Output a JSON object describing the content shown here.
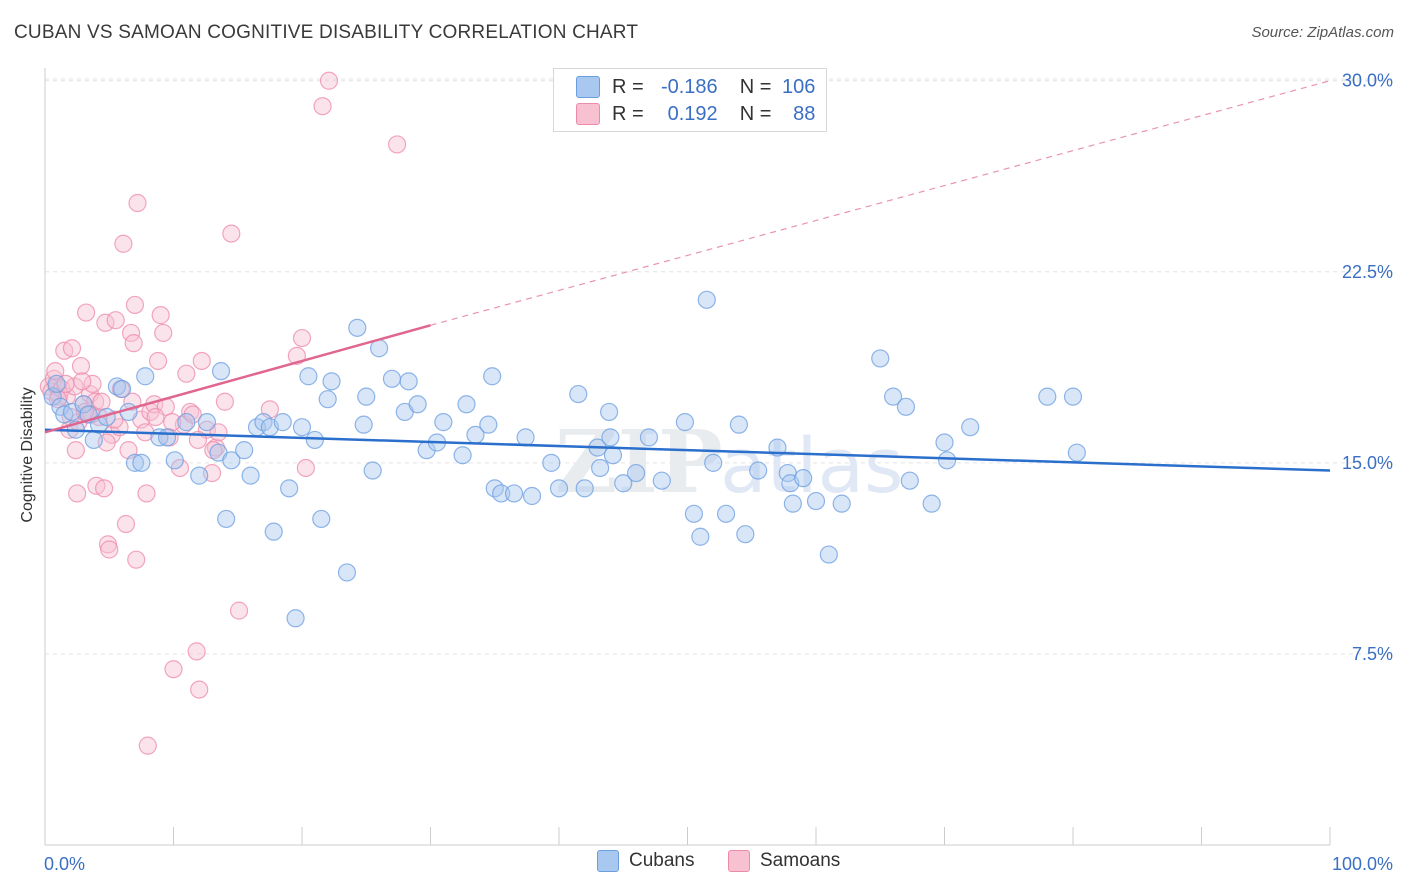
{
  "title": "CUBAN VS SAMOAN COGNITIVE DISABILITY CORRELATION CHART",
  "source": "Source: ZipAtlas.com",
  "legend": {
    "rows": [
      {
        "r_label": "R =",
        "r_value": "-0.186",
        "n_label": "N =",
        "n_value": "106"
      },
      {
        "r_label": "R =",
        "r_value": "0.192",
        "n_label": "N =",
        "n_value": "88"
      }
    ]
  },
  "colors": {
    "cubans": "#6b9ee0",
    "cubans_fill": "#a9c8ef",
    "cubans_line": "#2b6fcc",
    "samoans": "#ee8aaa",
    "samoans_fill": "#f7c1d2",
    "samoans_line": "#e0668f",
    "axis_text": "#3a6fc4"
  },
  "watermark": {
    "zip": "ZIP",
    "atlas": "atlas"
  },
  "chart_data": {
    "type": "scatter",
    "title": "CUBAN VS SAMOAN COGNITIVE DISABILITY CORRELATION CHART",
    "xlabel": "",
    "ylabel": "Cognitive Disability",
    "xlim": [
      0,
      100
    ],
    "ylim": [
      0,
      30.5
    ],
    "x_tick_labels": [
      "0.0%",
      "100.0%"
    ],
    "y_ticks": [
      7.5,
      15.0,
      22.5,
      30.0
    ],
    "y_tick_labels": [
      "7.5%",
      "15.0%",
      "22.5%",
      "30.0%"
    ],
    "grid": "horizontal dashed",
    "legend_position": "bottom",
    "series": [
      {
        "name": "Cubans",
        "r": -0.186,
        "n": 106,
        "trend": {
          "x": [
            0,
            100
          ],
          "y": [
            16.3,
            14.7
          ],
          "style": "solid"
        },
        "points": [
          [
            0.6,
            17.6
          ],
          [
            0.9,
            18.1
          ],
          [
            1.2,
            17.2
          ],
          [
            1.5,
            16.9
          ],
          [
            2.1,
            17.0
          ],
          [
            2.4,
            16.3
          ],
          [
            3.0,
            17.3
          ],
          [
            3.4,
            16.9
          ],
          [
            3.8,
            15.9
          ],
          [
            4.2,
            16.5
          ],
          [
            4.8,
            16.8
          ],
          [
            5.6,
            18.0
          ],
          [
            6.0,
            17.9
          ],
          [
            6.5,
            17.0
          ],
          [
            7.0,
            15.0
          ],
          [
            7.5,
            15.0
          ],
          [
            7.8,
            18.4
          ],
          [
            8.9,
            16.0
          ],
          [
            9.5,
            16.0
          ],
          [
            10.1,
            15.1
          ],
          [
            11.0,
            16.6
          ],
          [
            12.0,
            14.5
          ],
          [
            12.6,
            16.6
          ],
          [
            13.5,
            15.4
          ],
          [
            13.7,
            18.6
          ],
          [
            14.1,
            12.8
          ],
          [
            14.5,
            15.1
          ],
          [
            15.5,
            15.5
          ],
          [
            16.0,
            14.5
          ],
          [
            16.5,
            16.4
          ],
          [
            17.0,
            16.6
          ],
          [
            17.5,
            16.4
          ],
          [
            17.8,
            12.3
          ],
          [
            18.5,
            16.6
          ],
          [
            19.0,
            14.0
          ],
          [
            19.5,
            8.9
          ],
          [
            20.0,
            16.4
          ],
          [
            20.5,
            18.4
          ],
          [
            21.0,
            15.9
          ],
          [
            21.5,
            12.8
          ],
          [
            22.0,
            17.5
          ],
          [
            22.3,
            18.2
          ],
          [
            23.5,
            10.7
          ],
          [
            24.3,
            20.3
          ],
          [
            24.8,
            16.5
          ],
          [
            25.0,
            17.6
          ],
          [
            25.5,
            14.7
          ],
          [
            26.0,
            19.5
          ],
          [
            27.0,
            18.3
          ],
          [
            28.0,
            17.0
          ],
          [
            28.3,
            18.2
          ],
          [
            29.0,
            17.3
          ],
          [
            29.7,
            15.5
          ],
          [
            30.5,
            15.8
          ],
          [
            31.0,
            16.6
          ],
          [
            32.5,
            15.3
          ],
          [
            32.8,
            17.3
          ],
          [
            33.5,
            16.1
          ],
          [
            34.5,
            16.5
          ],
          [
            34.8,
            18.4
          ],
          [
            35.0,
            14.0
          ],
          [
            35.5,
            13.8
          ],
          [
            36.5,
            13.8
          ],
          [
            37.9,
            13.7
          ],
          [
            39.4,
            15.0
          ],
          [
            40.0,
            14.0
          ],
          [
            41.5,
            17.7
          ],
          [
            42.0,
            14.0
          ],
          [
            43.0,
            15.6
          ],
          [
            43.2,
            14.8
          ],
          [
            44.0,
            16.0
          ],
          [
            44.2,
            15.3
          ],
          [
            45.0,
            14.2
          ],
          [
            46.0,
            14.6
          ],
          [
            47.0,
            16.0
          ],
          [
            48.0,
            14.3
          ],
          [
            49.8,
            16.6
          ],
          [
            50.5,
            13.0
          ],
          [
            51.0,
            12.1
          ],
          [
            52.0,
            15.0
          ],
          [
            53.0,
            13.0
          ],
          [
            54.0,
            16.5
          ],
          [
            54.5,
            12.2
          ],
          [
            55.5,
            14.7
          ],
          [
            57.0,
            15.6
          ],
          [
            57.8,
            14.6
          ],
          [
            58.0,
            14.2
          ],
          [
            59.0,
            14.4
          ],
          [
            60.0,
            13.5
          ],
          [
            61.0,
            11.4
          ],
          [
            62.0,
            13.4
          ],
          [
            65.0,
            19.1
          ],
          [
            66.0,
            17.6
          ],
          [
            67.0,
            17.2
          ],
          [
            67.3,
            14.3
          ],
          [
            69.0,
            13.4
          ],
          [
            70.0,
            15.8
          ],
          [
            70.2,
            15.1
          ],
          [
            72.0,
            16.4
          ],
          [
            78.0,
            17.6
          ],
          [
            80.0,
            17.6
          ],
          [
            80.3,
            15.4
          ],
          [
            58.2,
            13.4
          ],
          [
            51.5,
            21.4
          ],
          [
            43.9,
            17.0
          ],
          [
            37.4,
            16.0
          ]
        ]
      },
      {
        "name": "Samoans",
        "r": 0.192,
        "n": 88,
        "trend": {
          "x": [
            0,
            30
          ],
          "y": [
            16.2,
            20.4
          ],
          "style": "solid",
          "extended": {
            "x": [
              30,
              100
            ],
            "y": [
              20.4,
              30.0
            ],
            "style": "dashed"
          }
        },
        "points": [
          [
            0.3,
            18.0
          ],
          [
            0.5,
            17.8
          ],
          [
            0.7,
            18.3
          ],
          [
            0.9,
            18.0
          ],
          [
            1.1,
            17.6
          ],
          [
            1.3,
            17.9
          ],
          [
            1.5,
            19.4
          ],
          [
            1.7,
            17.6
          ],
          [
            1.9,
            16.3
          ],
          [
            2.1,
            19.5
          ],
          [
            2.3,
            18.0
          ],
          [
            2.4,
            15.5
          ],
          [
            2.5,
            13.8
          ],
          [
            2.6,
            16.6
          ],
          [
            2.8,
            18.8
          ],
          [
            3.0,
            17.3
          ],
          [
            3.2,
            20.9
          ],
          [
            3.3,
            16.9
          ],
          [
            3.5,
            17.7
          ],
          [
            3.7,
            18.1
          ],
          [
            3.9,
            17.4
          ],
          [
            4.0,
            14.1
          ],
          [
            4.2,
            16.8
          ],
          [
            4.4,
            17.4
          ],
          [
            4.6,
            14.0
          ],
          [
            4.7,
            20.5
          ],
          [
            4.9,
            11.8
          ],
          [
            5.0,
            11.6
          ],
          [
            5.2,
            16.1
          ],
          [
            5.5,
            20.6
          ],
          [
            5.8,
            16.4
          ],
          [
            6.1,
            23.6
          ],
          [
            6.3,
            12.6
          ],
          [
            6.5,
            15.5
          ],
          [
            6.7,
            20.1
          ],
          [
            6.9,
            19.7
          ],
          [
            7.0,
            21.2
          ],
          [
            7.1,
            11.2
          ],
          [
            7.2,
            25.2
          ],
          [
            7.5,
            16.7
          ],
          [
            7.8,
            16.2
          ],
          [
            7.9,
            13.8
          ],
          [
            8.0,
            3.9
          ],
          [
            8.2,
            17.0
          ],
          [
            8.5,
            17.3
          ],
          [
            8.8,
            19.0
          ],
          [
            9.0,
            20.8
          ],
          [
            9.2,
            20.1
          ],
          [
            9.4,
            17.2
          ],
          [
            9.7,
            16.0
          ],
          [
            10.0,
            6.9
          ],
          [
            10.5,
            14.8
          ],
          [
            10.8,
            16.5
          ],
          [
            11.0,
            18.5
          ],
          [
            11.3,
            17.0
          ],
          [
            11.5,
            16.9
          ],
          [
            11.8,
            7.6
          ],
          [
            12.0,
            6.1
          ],
          [
            12.2,
            19.0
          ],
          [
            12.6,
            16.3
          ],
          [
            13.0,
            14.6
          ],
          [
            13.3,
            15.6
          ],
          [
            13.5,
            16.2
          ],
          [
            14.0,
            17.4
          ],
          [
            14.5,
            24.0
          ],
          [
            15.1,
            9.2
          ],
          [
            17.5,
            17.1
          ],
          [
            19.6,
            19.2
          ],
          [
            20.0,
            19.9
          ],
          [
            20.3,
            14.8
          ],
          [
            21.6,
            29.0
          ],
          [
            22.1,
            30.0
          ],
          [
            27.4,
            27.5
          ],
          [
            1.0,
            17.5
          ],
          [
            2.0,
            16.8
          ],
          [
            3.6,
            16.9
          ],
          [
            4.8,
            15.8
          ],
          [
            5.4,
            16.7
          ],
          [
            6.8,
            17.4
          ],
          [
            8.6,
            16.8
          ],
          [
            9.9,
            16.6
          ],
          [
            11.9,
            15.9
          ],
          [
            13.1,
            15.5
          ],
          [
            1.6,
            18.1
          ],
          [
            2.9,
            18.2
          ],
          [
            3.1,
            17.0
          ],
          [
            5.9,
            17.9
          ],
          [
            0.8,
            18.6
          ]
        ]
      }
    ]
  }
}
